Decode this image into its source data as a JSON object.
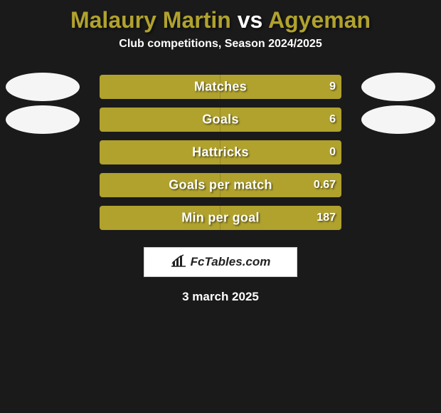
{
  "title": {
    "player1": "Malaury Martin",
    "vs": "vs",
    "player2": "Agyeman",
    "player1_color": "#b0a22d",
    "vs_color": "#ffffff",
    "player2_color": "#b0a22d"
  },
  "subtitle": "Club competitions, Season 2024/2025",
  "background_color": "#1a1a1a",
  "avatar_bg": "#f5f5f5",
  "rows": [
    {
      "stat": "Matches",
      "left_value": "",
      "right_value": "9",
      "left_pct": 50,
      "right_pct": 50,
      "left_color": "#b0a22d",
      "right_color": "#b0a22d",
      "show_left_avatar": true,
      "show_right_avatar": true
    },
    {
      "stat": "Goals",
      "left_value": "",
      "right_value": "6",
      "left_pct": 50,
      "right_pct": 50,
      "left_color": "#b0a22d",
      "right_color": "#b0a22d",
      "show_left_avatar": true,
      "show_right_avatar": true
    },
    {
      "stat": "Hattricks",
      "left_value": "",
      "right_value": "0",
      "left_pct": 50,
      "right_pct": 50,
      "left_color": "#b0a22d",
      "right_color": "#b0a22d",
      "show_left_avatar": false,
      "show_right_avatar": false
    },
    {
      "stat": "Goals per match",
      "left_value": "",
      "right_value": "0.67",
      "left_pct": 50,
      "right_pct": 50,
      "left_color": "#b0a22d",
      "right_color": "#b0a22d",
      "show_left_avatar": false,
      "show_right_avatar": false
    },
    {
      "stat": "Min per goal",
      "left_value": "",
      "right_value": "187",
      "left_pct": 50,
      "right_pct": 50,
      "left_color": "#b0a22d",
      "right_color": "#b0a22d",
      "show_left_avatar": false,
      "show_right_avatar": false
    }
  ],
  "branding": {
    "text": "FcTables.com",
    "icon_name": "barchart-icon"
  },
  "date": "3 march 2025"
}
